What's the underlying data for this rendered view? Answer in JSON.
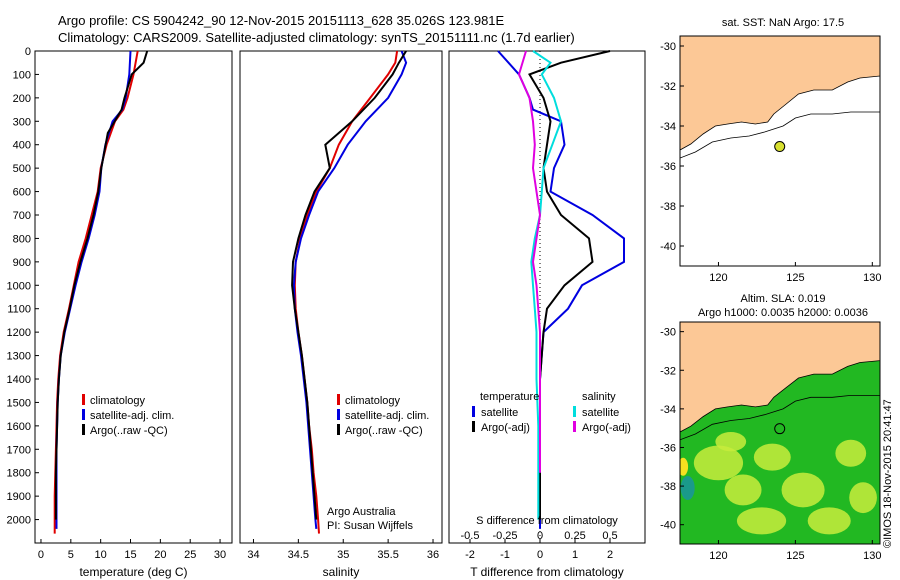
{
  "header": {
    "line1": "Argo profile: CS 5904242_90 12-Nov-2015 20151113_628 35.026S 123.981E",
    "line2": "Climatology: CARS2009. Satellite-adjusted climatology: synTS_20151111.nc (1.7d earlier)"
  },
  "colors": {
    "climatology": "#e00000",
    "satellite": "#0000e0",
    "argo": "#000000",
    "sal_satellite": "#00dddd",
    "sal_argo": "#e000e0",
    "land": "#fcc896",
    "float_marker": "#d8e030"
  },
  "chart_data": [
    {
      "type": "line",
      "id": "temperature",
      "xlabel": "temperature (deg C)",
      "ylim": [
        0,
        2100
      ],
      "xlim": [
        -1,
        32
      ],
      "xticks": [
        0,
        5,
        10,
        15,
        20,
        25,
        30
      ],
      "yticks": [
        0,
        100,
        200,
        300,
        400,
        500,
        600,
        700,
        800,
        900,
        1000,
        1100,
        1200,
        1300,
        1400,
        1500,
        1600,
        1700,
        1800,
        1900,
        2000
      ],
      "legend": [
        "climatology",
        "satellite-adj. clim.",
        "Argo(..raw -QC)"
      ],
      "series": [
        {
          "name": "climatology",
          "color": "#e00000",
          "x": [
            16.2,
            15.5,
            14.5,
            13.8,
            12.4,
            11.0,
            10.0,
            9.5,
            8.5,
            7.5,
            6.3,
            5.5,
            4.7,
            3.8,
            3.2,
            2.9,
            2.7,
            2.6,
            2.5,
            2.4,
            2.3,
            2.3,
            2.3
          ],
          "y": [
            0,
            100,
            200,
            250,
            300,
            400,
            500,
            600,
            700,
            800,
            900,
            1000,
            1100,
            1200,
            1300,
            1400,
            1500,
            1600,
            1700,
            1800,
            1900,
            2000,
            2060
          ]
        },
        {
          "name": "satellite-adj. clim.",
          "color": "#0000e0",
          "x": [
            15.0,
            14.8,
            14.2,
            13.6,
            12.0,
            10.8,
            10.1,
            9.8,
            9.0,
            8.0,
            6.8,
            5.8,
            4.9,
            4.0,
            3.3,
            3.0,
            2.8,
            2.7,
            2.6,
            2.6,
            2.6,
            2.6,
            2.6
          ],
          "y": [
            0,
            100,
            200,
            250,
            300,
            400,
            500,
            600,
            700,
            800,
            900,
            1000,
            1100,
            1200,
            1300,
            1400,
            1500,
            1600,
            1700,
            1800,
            1900,
            2000,
            2040
          ]
        },
        {
          "name": "Argo(..raw -QC)",
          "color": "#000000",
          "x": [
            17.8,
            17.2,
            15.2,
            14.0,
            13.5,
            11.2,
            10.1,
            9.6,
            8.8,
            7.8,
            6.6,
            5.6,
            4.8,
            3.9,
            3.3,
            3.0,
            2.8,
            2.7,
            2.6,
            2.5,
            2.5,
            2.5
          ],
          "y": [
            0,
            50,
            100,
            200,
            250,
            350,
            500,
            600,
            700,
            800,
            900,
            1000,
            1100,
            1200,
            1300,
            1400,
            1500,
            1600,
            1700,
            1800,
            1900,
            2000
          ]
        }
      ]
    },
    {
      "type": "line",
      "id": "salinity",
      "xlabel": "salinity",
      "ylim": [
        0,
        2100
      ],
      "xlim": [
        33.85,
        36.1
      ],
      "xticks": [
        34,
        34.5,
        35,
        35.5,
        36
      ],
      "xticklabels": [
        "34",
        "34.5",
        "35",
        "35.5",
        "36"
      ],
      "legend": [
        "climatology",
        "satellite-adj. clim.",
        "Argo(..raw -QC)"
      ],
      "notes": [
        "Argo Australia",
        "PI: Susan Wijffels"
      ],
      "series": [
        {
          "name": "climatology",
          "color": "#e00000",
          "x": [
            35.6,
            35.58,
            35.5,
            35.3,
            35.1,
            34.95,
            34.85,
            34.7,
            34.6,
            34.52,
            34.47,
            34.46,
            34.47,
            34.5,
            34.54,
            34.57,
            34.6,
            34.62,
            34.65,
            34.67,
            34.7,
            34.72,
            34.73
          ],
          "y": [
            0,
            50,
            100,
            200,
            300,
            400,
            500,
            600,
            700,
            800,
            900,
            1000,
            1100,
            1200,
            1300,
            1400,
            1500,
            1600,
            1700,
            1800,
            1900,
            2000,
            2060
          ]
        },
        {
          "name": "satellite-adj. clim.",
          "color": "#0000e0",
          "x": [
            35.65,
            35.7,
            35.65,
            35.5,
            35.25,
            35.05,
            34.9,
            34.72,
            34.62,
            34.53,
            34.47,
            34.45,
            34.46,
            34.49,
            34.53,
            34.56,
            34.59,
            34.61,
            34.63,
            34.65,
            34.67,
            34.69,
            34.7
          ],
          "y": [
            0,
            50,
            100,
            200,
            300,
            400,
            500,
            600,
            700,
            800,
            900,
            1000,
            1100,
            1200,
            1300,
            1400,
            1500,
            1600,
            1700,
            1800,
            1900,
            2000,
            2040
          ]
        },
        {
          "name": "Argo(..raw -QC)",
          "color": "#000000",
          "x": [
            35.7,
            35.62,
            35.55,
            35.35,
            35.1,
            34.8,
            34.85,
            34.68,
            34.58,
            34.5,
            34.44,
            34.43,
            34.46,
            34.5,
            34.54,
            34.57,
            34.6,
            34.62,
            34.64,
            34.66,
            34.68,
            34.7
          ],
          "y": [
            0,
            50,
            100,
            200,
            300,
            400,
            500,
            600,
            700,
            800,
            900,
            1000,
            1100,
            1200,
            1300,
            1400,
            1500,
            1600,
            1700,
            1800,
            1900,
            2000
          ]
        }
      ]
    },
    {
      "type": "line",
      "id": "difference",
      "xlabel_top": "S difference from climatology",
      "xticklabels_top": [
        "-0.5",
        "-0.25",
        "0",
        "0.25",
        "0.5"
      ],
      "xlabel": "T difference from climatology",
      "xlim": [
        -2.6,
        3.0
      ],
      "xticks": [
        -2,
        -1,
        0,
        1,
        2
      ],
      "ylim": [
        0,
        2100
      ],
      "legend_temperature": {
        "title": "temperature",
        "items": [
          "satellite",
          "Argo(-adj)"
        ]
      },
      "legend_salinity": {
        "title": "salinity",
        "items": [
          "satellite",
          "Argo(-adj)"
        ]
      },
      "series": [
        {
          "name": "T satellite",
          "color": "#0000e0",
          "x": [
            -1.2,
            -0.6,
            -0.3,
            -0.2,
            0.6,
            0.7,
            0.4,
            0.3,
            1.5,
            2.4,
            2.4,
            1.2,
            0.8,
            0.1,
            0.0,
            0.0,
            0.0,
            0.0,
            0.0
          ],
          "y": [
            0,
            100,
            200,
            250,
            300,
            400,
            500,
            600,
            700,
            800,
            900,
            1000,
            1100,
            1200,
            1400,
            1600,
            1800,
            2000,
            2040
          ]
        },
        {
          "name": "T Argo(-adj)",
          "color": "#000000",
          "x": [
            2.0,
            0.6,
            -0.3,
            0.1,
            0.3,
            0.2,
            0.1,
            0.2,
            0.6,
            1.4,
            1.5,
            0.7,
            0.2,
            0.1,
            0.0,
            0.0,
            0.0,
            0.0
          ],
          "y": [
            0,
            50,
            100,
            200,
            300,
            400,
            500,
            600,
            700,
            800,
            900,
            1000,
            1100,
            1200,
            1400,
            1600,
            1800,
            2000
          ]
        },
        {
          "name": "S satellite",
          "color": "#00dddd",
          "x": [
            -0.2,
            0.3,
            0.05,
            0.4,
            0.6,
            0.35,
            0.1,
            0.05,
            0.0,
            -0.15,
            -0.25,
            -0.2,
            -0.15,
            -0.1,
            -0.1,
            -0.05,
            -0.05,
            -0.05
          ],
          "y": [
            0,
            50,
            100,
            200,
            300,
            400,
            500,
            600,
            700,
            800,
            900,
            1000,
            1100,
            1200,
            1400,
            1600,
            1800,
            2000
          ]
        },
        {
          "name": "S Argo(-adj)",
          "color": "#e000e0",
          "x": [
            -0.4,
            -0.6,
            -0.3,
            -0.2,
            -0.15,
            -0.2,
            -0.1,
            0.0,
            -0.1,
            -0.2,
            -0.1,
            0.0,
            0.0,
            0.0,
            0.0
          ],
          "y": [
            0,
            100,
            200,
            300,
            400,
            500,
            600,
            700,
            800,
            900,
            1000,
            1200,
            1400,
            1600,
            1800
          ]
        }
      ]
    }
  ],
  "maps": {
    "sst": {
      "title": "sat. SST: NaN Argo: 17.5",
      "xticks": [
        120,
        125,
        130
      ],
      "yticks": [
        -30,
        -32,
        -34,
        -36,
        -38,
        -40
      ],
      "xlim": [
        117.5,
        130.5
      ],
      "ylim": [
        -41,
        -29.5
      ],
      "float": [
        123.981,
        -35.026
      ]
    },
    "sla": {
      "title1": "Altim. SLA: 0.019",
      "title2": "Argo h1000: 0.0035 h2000: 0.0036",
      "xticks": [
        120,
        125,
        130
      ],
      "yticks": [
        -30,
        -32,
        -34,
        -36,
        -38,
        -40
      ],
      "xlim": [
        117.5,
        130.5
      ],
      "ylim": [
        -41,
        -29.5
      ],
      "float": [
        123.981,
        -35.026
      ]
    }
  },
  "footer": {
    "copyright": "©IMOS 18-Nov-2015 20:41:47"
  }
}
